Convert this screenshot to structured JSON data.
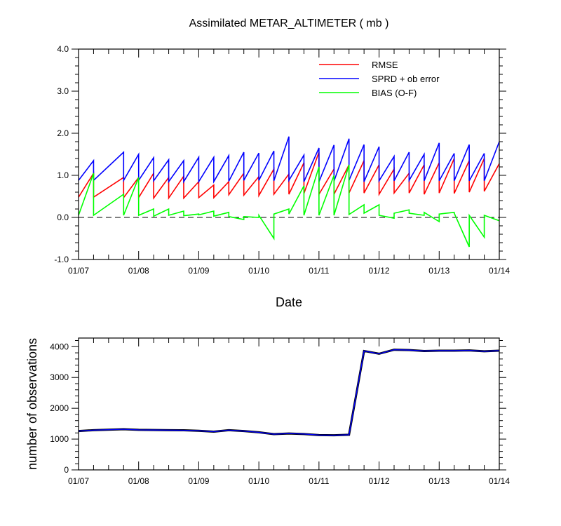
{
  "chart_data": [
    {
      "type": "line",
      "title": "Assimilated METAR_ALTIMETER ( mb )",
      "xlabel": "Date",
      "ylabel": "",
      "xlim": [
        0,
        7
      ],
      "ylim": [
        -1.0,
        4.0
      ],
      "yticks": [
        -1.0,
        0.0,
        1.0,
        2.0,
        3.0,
        4.0
      ],
      "ytick_labels": [
        "-1.0",
        "0.0",
        "1.0",
        "2.0",
        "3.0",
        "4.0"
      ],
      "xtick_labels": [
        "01/07",
        "01/08",
        "01/09",
        "01/10",
        "01/11",
        "01/12",
        "01/13",
        "01/14"
      ],
      "legend_position": "top-right",
      "zero_line": true,
      "series": [
        {
          "name": "RMSE",
          "color": "#ff0000",
          "points": [
            [
              0,
              0.48
            ],
            [
              0.25,
              1.05
            ],
            [
              0.25,
              0.48
            ],
            [
              0.75,
              0.95
            ],
            [
              0.75,
              0.47
            ],
            [
              1.0,
              0.95
            ],
            [
              1.0,
              0.47
            ],
            [
              1.25,
              1.05
            ],
            [
              1.25,
              0.46
            ],
            [
              1.5,
              0.95
            ],
            [
              1.5,
              0.46
            ],
            [
              1.75,
              0.98
            ],
            [
              1.75,
              0.46
            ],
            [
              2.0,
              0.85
            ],
            [
              2.0,
              0.47
            ],
            [
              2.25,
              0.77
            ],
            [
              2.25,
              0.47
            ],
            [
              2.5,
              0.85
            ],
            [
              2.5,
              0.54
            ],
            [
              2.75,
              1.05
            ],
            [
              2.75,
              0.53
            ],
            [
              3.0,
              0.97
            ],
            [
              3.0,
              0.52
            ],
            [
              3.25,
              1.15
            ],
            [
              3.25,
              0.55
            ],
            [
              3.5,
              1.03
            ],
            [
              3.5,
              0.55
            ],
            [
              3.75,
              1.3
            ],
            [
              3.75,
              0.57
            ],
            [
              4.0,
              1.55
            ],
            [
              4.0,
              0.55
            ],
            [
              4.25,
              1.15
            ],
            [
              4.25,
              0.55
            ],
            [
              4.5,
              1.25
            ],
            [
              4.5,
              0.58
            ],
            [
              4.75,
              1.35
            ],
            [
              4.75,
              0.58
            ],
            [
              5.0,
              1.25
            ],
            [
              5.0,
              0.55
            ],
            [
              5.25,
              1.15
            ],
            [
              5.25,
              0.58
            ],
            [
              5.5,
              1.05
            ],
            [
              5.5,
              0.58
            ],
            [
              5.75,
              1.25
            ],
            [
              5.75,
              0.55
            ],
            [
              6.0,
              1.3
            ],
            [
              6.0,
              0.58
            ],
            [
              6.25,
              1.4
            ],
            [
              6.25,
              0.57
            ],
            [
              6.5,
              1.35
            ],
            [
              6.5,
              0.6
            ],
            [
              6.75,
              1.4
            ],
            [
              6.75,
              0.62
            ],
            [
              7.0,
              1.28
            ]
          ]
        },
        {
          "name": "SPRD + ob error",
          "color": "#0000ff",
          "points": [
            [
              0,
              0.88
            ],
            [
              0.25,
              1.35
            ],
            [
              0.25,
              0.88
            ],
            [
              0.75,
              1.55
            ],
            [
              0.75,
              0.88
            ],
            [
              1.0,
              1.5
            ],
            [
              1.0,
              0.88
            ],
            [
              1.25,
              1.42
            ],
            [
              1.25,
              0.87
            ],
            [
              1.5,
              1.37
            ],
            [
              1.5,
              0.85
            ],
            [
              1.75,
              1.35
            ],
            [
              1.75,
              0.85
            ],
            [
              2.0,
              1.43
            ],
            [
              2.0,
              0.85
            ],
            [
              2.25,
              1.43
            ],
            [
              2.25,
              0.85
            ],
            [
              2.5,
              1.47
            ],
            [
              2.5,
              0.86
            ],
            [
              2.75,
              1.55
            ],
            [
              2.75,
              0.88
            ],
            [
              3.0,
              1.53
            ],
            [
              3.0,
              0.88
            ],
            [
              3.25,
              1.58
            ],
            [
              3.25,
              0.87
            ],
            [
              3.5,
              1.92
            ],
            [
              3.5,
              0.88
            ],
            [
              3.75,
              1.48
            ],
            [
              3.75,
              0.85
            ],
            [
              4.0,
              1.65
            ],
            [
              4.0,
              0.85
            ],
            [
              4.25,
              1.72
            ],
            [
              4.25,
              0.86
            ],
            [
              4.5,
              1.87
            ],
            [
              4.5,
              0.88
            ],
            [
              4.75,
              1.73
            ],
            [
              4.75,
              0.85
            ],
            [
              5.0,
              1.68
            ],
            [
              5.0,
              0.87
            ],
            [
              5.25,
              1.45
            ],
            [
              5.25,
              0.87
            ],
            [
              5.5,
              1.55
            ],
            [
              5.5,
              0.88
            ],
            [
              5.75,
              1.5
            ],
            [
              5.75,
              0.87
            ],
            [
              6.0,
              1.77
            ],
            [
              6.0,
              0.87
            ],
            [
              6.25,
              1.52
            ],
            [
              6.25,
              0.87
            ],
            [
              6.5,
              1.73
            ],
            [
              6.5,
              0.87
            ],
            [
              6.75,
              1.52
            ],
            [
              6.75,
              0.87
            ],
            [
              7.0,
              1.8
            ]
          ]
        },
        {
          "name": "BIAS (O-F)",
          "color": "#00ff00",
          "points": [
            [
              0,
              0.05
            ],
            [
              0.25,
              1.05
            ],
            [
              0.25,
              0.05
            ],
            [
              0.75,
              0.55
            ],
            [
              0.75,
              0.05
            ],
            [
              1.0,
              0.95
            ],
            [
              1.0,
              0.05
            ],
            [
              1.25,
              0.2
            ],
            [
              1.25,
              0.03
            ],
            [
              1.5,
              0.2
            ],
            [
              1.5,
              0.05
            ],
            [
              1.75,
              0.15
            ],
            [
              1.75,
              0.04
            ],
            [
              2.0,
              0.08
            ],
            [
              2.0,
              0.06
            ],
            [
              2.25,
              0.15
            ],
            [
              2.25,
              0.03
            ],
            [
              2.5,
              0.12
            ],
            [
              2.5,
              0.02
            ],
            [
              2.75,
              -0.05
            ],
            [
              2.75,
              0.02
            ],
            [
              3.0,
              0.0
            ],
            [
              3.0,
              0.05
            ],
            [
              3.25,
              -0.5
            ],
            [
              3.25,
              0.08
            ],
            [
              3.5,
              0.2
            ],
            [
              3.5,
              0.08
            ],
            [
              3.75,
              0.75
            ],
            [
              3.75,
              0.05
            ],
            [
              4.0,
              1.2
            ],
            [
              4.0,
              0.05
            ],
            [
              4.25,
              1.0
            ],
            [
              4.25,
              0.05
            ],
            [
              4.5,
              1.25
            ],
            [
              4.5,
              0.07
            ],
            [
              4.75,
              0.3
            ],
            [
              4.75,
              0.1
            ],
            [
              5.0,
              0.3
            ],
            [
              5.0,
              0.05
            ],
            [
              5.25,
              -0.02
            ],
            [
              5.25,
              0.1
            ],
            [
              5.5,
              0.18
            ],
            [
              5.5,
              0.1
            ],
            [
              5.75,
              0.05
            ],
            [
              5.75,
              0.12
            ],
            [
              6.0,
              -0.1
            ],
            [
              6.0,
              0.08
            ],
            [
              6.25,
              0.12
            ],
            [
              6.25,
              0.1
            ],
            [
              6.5,
              -0.7
            ],
            [
              6.5,
              0.05
            ],
            [
              6.75,
              -0.47
            ],
            [
              6.75,
              0.05
            ],
            [
              7.0,
              -0.08
            ]
          ]
        }
      ]
    },
    {
      "type": "line",
      "title": "",
      "xlabel": "",
      "ylabel": "number of observations",
      "xlim": [
        0,
        7
      ],
      "ylim": [
        0,
        4280
      ],
      "yticks": [
        0,
        1000,
        2000,
        3000,
        4000
      ],
      "ytick_labels": [
        "0",
        "1000",
        "2000",
        "3000",
        "4000"
      ],
      "xtick_labels": [
        "01/07",
        "01/08",
        "01/09",
        "01/10",
        "01/11",
        "01/12",
        "01/13",
        "01/14"
      ],
      "series": [
        {
          "name": "observations",
          "color": "#0000ff",
          "points": [
            [
              0,
              1260
            ],
            [
              0.25,
              1290
            ],
            [
              0.75,
              1320
            ],
            [
              1.0,
              1300
            ],
            [
              1.25,
              1295
            ],
            [
              1.5,
              1290
            ],
            [
              1.75,
              1285
            ],
            [
              2.0,
              1270
            ],
            [
              2.25,
              1240
            ],
            [
              2.5,
              1290
            ],
            [
              2.75,
              1260
            ],
            [
              3.0,
              1220
            ],
            [
              3.25,
              1160
            ],
            [
              3.5,
              1180
            ],
            [
              3.75,
              1165
            ],
            [
              4.0,
              1130
            ],
            [
              4.25,
              1125
            ],
            [
              4.5,
              1140
            ],
            [
              4.75,
              3860
            ],
            [
              5.0,
              3770
            ],
            [
              5.25,
              3900
            ],
            [
              5.5,
              3890
            ],
            [
              5.75,
              3860
            ],
            [
              6.0,
              3870
            ],
            [
              6.25,
              3870
            ],
            [
              6.5,
              3880
            ],
            [
              6.75,
              3850
            ],
            [
              7.0,
              3870
            ]
          ]
        }
      ]
    }
  ]
}
